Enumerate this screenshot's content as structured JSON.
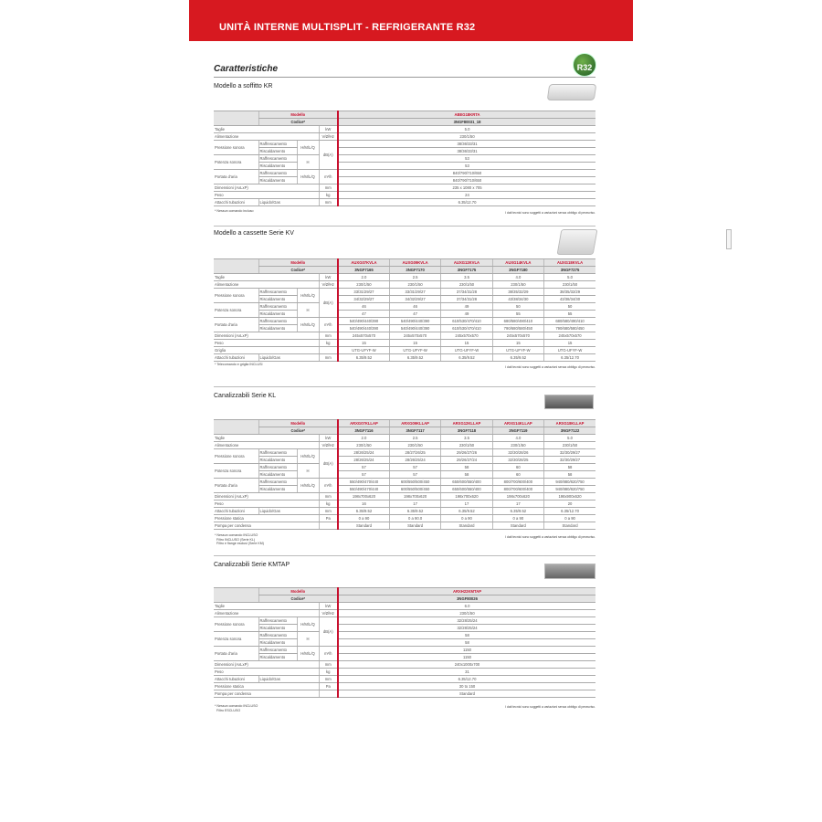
{
  "header": {
    "title": "UNITÀ INTERNE MULTISPLIT - REFRIGERANTE R32"
  },
  "section_title": "Caratteristiche",
  "badge": {
    "label": "R32",
    "small": "refrigerante"
  },
  "disclaimer": "I dati tecnici sono soggetti a variazioni senza obbligo di preavviso.",
  "header_labels": {
    "model": "Modello",
    "code": "Codice*"
  },
  "sections": [
    {
      "title": "Modello a soffitto KR",
      "note": "* Nessun comando incluso",
      "models": [
        "ABEG18KRTA"
      ],
      "codes": [
        "3NGF80031_18"
      ],
      "rows": [
        {
          "label": "Taglie",
          "unit": "kW",
          "values": [
            "5.0"
          ]
        },
        {
          "label": "Alimentazione",
          "unit": "V/Ø/Hz",
          "values": [
            "230/1/50"
          ]
        },
        {
          "label": "Pressione sonora",
          "mode": "H/M/L/Q",
          "unit": "dB(A)",
          "sub": [
            {
              "label": "Raffrescamento",
              "values": [
                "38/36/33/31"
              ]
            },
            {
              "label": "Riscaldamento",
              "values": [
                "38/36/33/31"
              ]
            }
          ]
        },
        {
          "label": "Potenza sonora",
          "mode": "H",
          "sub": [
            {
              "label": "Raffrescamento",
              "values": [
                "53"
              ]
            },
            {
              "label": "Riscaldamento",
              "values": [
                "53"
              ]
            }
          ]
        },
        {
          "label": "Portata d'aria",
          "mode": "H/M/L/Q",
          "unit": "m³/h",
          "sub": [
            {
              "label": "Raffrescamento",
              "values": [
                "840/790/710/650"
              ]
            },
            {
              "label": "Riscaldamento",
              "values": [
                "840/790/710/650"
              ]
            }
          ]
        },
        {
          "label": "Dimensioni (AxLxP)",
          "unit": "mm",
          "values": [
            "235 x 1080 x 705"
          ]
        },
        {
          "label": "Peso",
          "unit": "kg",
          "values": [
            "24"
          ]
        },
        {
          "label": "Attacchi tubazioni",
          "sublabel": "Liquido/Gas",
          "unit": "mm",
          "values": [
            "6.35/12.70"
          ]
        }
      ]
    },
    {
      "title": "Modello a cassette Serie KV",
      "note": "* Telecomando e griglia INCLUSI",
      "models": [
        "AUXG07KVLA",
        "AUXG09KVLA",
        "AUXG12KVLA",
        "AUXG14KVLA",
        "AUXG18KVLA"
      ],
      "codes": [
        "3NGF7165",
        "3NGF7170",
        "3NGF7175",
        "3NGF7180",
        "3NGF7275"
      ],
      "rows": [
        {
          "label": "Taglie",
          "unit": "kW",
          "values": [
            "2.0",
            "2.5",
            "3.5",
            "4.0",
            "5.0"
          ]
        },
        {
          "label": "Alimentazione",
          "unit": "V/Ø/Hz",
          "values": [
            "230/1/50",
            "230/1/50",
            "230/1/50",
            "230/1/50",
            "230/1/50"
          ]
        },
        {
          "label": "Pressione sonora",
          "mode": "H/M/L/Q",
          "unit": "dB(A)",
          "sub": [
            {
              "label": "Raffrescamento",
              "values": [
                "33/31/29/27",
                "33/31/29/27",
                "37/34/31/28",
                "38/35/32/29",
                "38/35/32/29"
              ]
            },
            {
              "label": "Riscaldamento",
              "values": [
                "34/32/29/27",
                "34/32/29/27",
                "37/34/31/28",
                "43/38/34/30",
                "43/38/34/30"
              ]
            }
          ]
        },
        {
          "label": "Potenza sonora",
          "mode": "H",
          "sub": [
            {
              "label": "Raffrescamento",
              "values": [
                "46",
                "46",
                "49",
                "50",
                "50"
              ]
            },
            {
              "label": "Riscaldamento",
              "values": [
                "47",
                "47",
                "49",
                "55",
                "55"
              ]
            }
          ]
        },
        {
          "label": "Portata d'aria",
          "mode": "H/M/L/Q",
          "unit": "m³/h",
          "sub": [
            {
              "label": "Raffrescamento",
              "values": [
                "540/490/440/390",
                "540/490/440/390",
                "610/530/470/410",
                "680/580/490/410",
                "680/580/490/410"
              ]
            },
            {
              "label": "Riscaldamento",
              "values": [
                "540/490/440/390",
                "540/490/440/390",
                "610/530/470/410",
                "790/680/580/450",
                "790/680/580/450"
              ]
            }
          ]
        },
        {
          "label": "Dimensioni (AxLxP)",
          "unit": "mm",
          "values": [
            "245x570x570",
            "245x570x570",
            "245x570x570",
            "245x570x570",
            "245x570x570"
          ]
        },
        {
          "label": "Peso",
          "unit": "kg",
          "values": [
            "15",
            "15",
            "15",
            "15",
            "15"
          ]
        },
        {
          "label": "Griglia",
          "unit": "",
          "values": [
            "UTG-UFYF-W",
            "UTG-UFYF-W",
            "UTG-UFYF-W",
            "UTG-UFYF-W",
            "UTG-UFYF-W"
          ]
        },
        {
          "label": "Attacchi tubazioni",
          "sublabel": "Liquido/Gas",
          "unit": "mm",
          "values": [
            "6.35/9.52",
            "6.35/9.52",
            "6.35/9.52",
            "6.35/9.52",
            "6.35/12.70"
          ]
        }
      ]
    },
    {
      "title": "Canalizzabili Serie KL",
      "note": "* Nessun comando INCLUSO\n  Filtro INCLUSO (Serie KL)\n  Filtro e flange esclusi (Serie KM)",
      "models": [
        "ARXG07KLLAP",
        "ARXG09KLLAP",
        "ARXG12KLLAP",
        "ARXG14KLLAP",
        "ARXG18KLLAP"
      ],
      "codes": [
        "3NGF7116",
        "3NGF7117",
        "3NGF7118",
        "3NGF7119",
        "3NGF7122"
      ],
      "rows": [
        {
          "label": "Taglie",
          "unit": "kW",
          "values": [
            "2.0",
            "2.5",
            "3.5",
            "4.0",
            "5.0"
          ]
        },
        {
          "label": "Alimentazione",
          "unit": "V/Ø/Hz",
          "values": [
            "230/1/50",
            "230/1/50",
            "230/1/50",
            "230/1/50",
            "230/1/50"
          ]
        },
        {
          "label": "Pressione sonora",
          "mode": "H/M/L/Q",
          "unit": "dB(A)",
          "sub": [
            {
              "label": "Raffrescamento",
              "values": [
                "28/26/25/24",
                "28/27/26/25",
                "29/26/27/26",
                "32/30/28/26",
                "32/30/29/27"
              ]
            },
            {
              "label": "Riscaldamento",
              "values": [
                "28/26/25/24",
                "28/26/25/24",
                "29/26/27/24",
                "32/30/28/25",
                "32/30/29/27"
              ]
            }
          ]
        },
        {
          "label": "Potenza sonora",
          "mode": "H",
          "sub": [
            {
              "label": "Raffrescamento",
              "values": [
                "57",
                "57",
                "58",
                "60",
                "58"
              ]
            },
            {
              "label": "Riscaldamento",
              "values": [
                "57",
                "57",
                "58",
                "60",
                "58"
              ]
            }
          ]
        },
        {
          "label": "Portata d'aria",
          "mode": "H/M/L/Q",
          "unit": "m³/h",
          "sub": [
            {
              "label": "Raffrescamento",
              "values": [
                "550/490/470/440",
                "600/550/500/450",
                "650/600/550/400",
                "800/700/600/400",
                "940/880/820/750"
              ]
            },
            {
              "label": "Riscaldamento",
              "values": [
                "550/490/470/440",
                "600/550/500/450",
                "650/600/550/400",
                "800/700/600/400",
                "940/880/820/750"
              ]
            }
          ]
        },
        {
          "label": "Dimensioni (AxLxP)",
          "unit": "mm",
          "values": [
            "198x700x620",
            "198x700x620",
            "198x700x620",
            "198x700x620",
            "198x900x620"
          ]
        },
        {
          "label": "Peso",
          "unit": "kg",
          "values": [
            "16",
            "17",
            "17",
            "17",
            "20"
          ]
        },
        {
          "label": "Attacchi tubazioni",
          "sublabel": "Liquido/Gas",
          "unit": "mm",
          "values": [
            "6.35/9.52",
            "6.35/9.52",
            "6.35/9.52",
            "6.35/9.52",
            "6.35/12.70"
          ]
        },
        {
          "label": "Pressione statica",
          "unit": "Pa",
          "values": [
            "0 a 90",
            "0 a 90.0",
            "0 a 90",
            "0 a 90",
            "0 a 90"
          ]
        },
        {
          "label": "Pompa per condensa",
          "unit": "",
          "values": [
            "Standard",
            "Standard",
            "Standard",
            "Standard",
            "Standard"
          ]
        }
      ]
    },
    {
      "title": "Canalizzabili Serie KMTAP",
      "note": "* Nessun comando INCLUSO\n  Filtro ESCLUSO",
      "models": [
        "ARXH22KMTAP"
      ],
      "codes": [
        "3NGF80026"
      ],
      "rows": [
        {
          "label": "Taglie",
          "unit": "kW",
          "values": [
            "6.0"
          ]
        },
        {
          "label": "Alimentazione",
          "unit": "V/Ø/Hz",
          "values": [
            "230/1/50"
          ]
        },
        {
          "label": "Pressione sonora",
          "mode": "H/M/L/Q",
          "unit": "dB(A)",
          "sub": [
            {
              "label": "Raffrescamento",
              "values": [
                "32/28/25/24"
              ]
            },
            {
              "label": "Riscaldamento",
              "values": [
                "32/28/25/24"
              ]
            }
          ]
        },
        {
          "label": "Potenza sonora",
          "mode": "H",
          "sub": [
            {
              "label": "Raffrescamento",
              "values": [
                "58"
              ]
            },
            {
              "label": "Riscaldamento",
              "values": [
                "58"
              ]
            }
          ]
        },
        {
          "label": "Portata d'aria",
          "mode": "H/M/L/Q",
          "unit": "m³/h",
          "sub": [
            {
              "label": "Raffrescamento",
              "values": [
                "1150"
              ]
            },
            {
              "label": "Riscaldamento",
              "values": [
                "1150"
              ]
            }
          ]
        },
        {
          "label": "Dimensioni (AxLxP)",
          "unit": "mm",
          "values": [
            "240x1000x700"
          ]
        },
        {
          "label": "Peso",
          "unit": "kg",
          "values": [
            "31"
          ]
        },
        {
          "label": "Attacchi tubazioni",
          "sublabel": "Liquido/Gas",
          "unit": "mm",
          "values": [
            "6.35/12.70"
          ]
        },
        {
          "label": "Pressione statica",
          "unit": "Pa",
          "values": [
            "30 to 150"
          ]
        },
        {
          "label": "Pompa per condensa",
          "unit": "",
          "values": [
            "Standard"
          ]
        }
      ]
    }
  ]
}
